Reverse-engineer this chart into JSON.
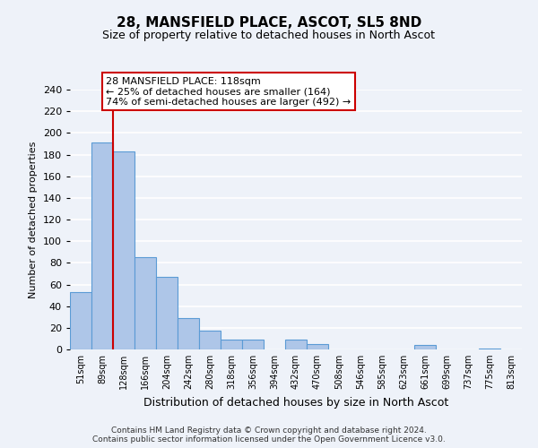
{
  "title": "28, MANSFIELD PLACE, ASCOT, SL5 8ND",
  "subtitle": "Size of property relative to detached houses in North Ascot",
  "xlabel": "Distribution of detached houses by size in North Ascot",
  "ylabel": "Number of detached properties",
  "footer_line1": "Contains HM Land Registry data © Crown copyright and database right 2024.",
  "footer_line2": "Contains public sector information licensed under the Open Government Licence v3.0.",
  "bin_labels": [
    "51sqm",
    "89sqm",
    "128sqm",
    "166sqm",
    "204sqm",
    "242sqm",
    "280sqm",
    "318sqm",
    "356sqm",
    "394sqm",
    "432sqm",
    "470sqm",
    "508sqm",
    "546sqm",
    "585sqm",
    "623sqm",
    "661sqm",
    "699sqm",
    "737sqm",
    "775sqm",
    "813sqm"
  ],
  "bar_values": [
    53,
    191,
    183,
    85,
    67,
    29,
    17,
    9,
    9,
    0,
    9,
    5,
    0,
    0,
    0,
    0,
    4,
    0,
    0,
    1,
    0
  ],
  "bar_color": "#aec6e8",
  "bar_edge_color": "#5b9bd5",
  "vline_x_index": 2,
  "vline_color": "#cc0000",
  "annotation_line0": "28 MANSFIELD PLACE: 118sqm",
  "annotation_line1": "← 25% of detached houses are smaller (164)",
  "annotation_line2": "74% of semi-detached houses are larger (492) →",
  "annotation_box_facecolor": "#ffffff",
  "annotation_box_edgecolor": "#cc0000",
  "ylim": [
    0,
    240
  ],
  "yticks": [
    0,
    20,
    40,
    60,
    80,
    100,
    120,
    140,
    160,
    180,
    200,
    220,
    240
  ],
  "bg_color": "#eef2f9",
  "grid_color": "#ffffff"
}
